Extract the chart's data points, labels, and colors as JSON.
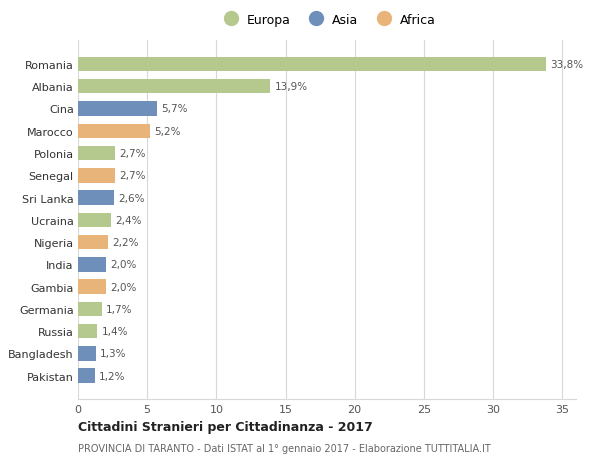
{
  "countries": [
    "Romania",
    "Albania",
    "Cina",
    "Marocco",
    "Polonia",
    "Senegal",
    "Sri Lanka",
    "Ucraina",
    "Nigeria",
    "India",
    "Gambia",
    "Germania",
    "Russia",
    "Bangladesh",
    "Pakistan"
  ],
  "values": [
    33.8,
    13.9,
    5.7,
    5.2,
    2.7,
    2.7,
    2.6,
    2.4,
    2.2,
    2.0,
    2.0,
    1.7,
    1.4,
    1.3,
    1.2
  ],
  "labels": [
    "33,8%",
    "13,9%",
    "5,7%",
    "5,2%",
    "2,7%",
    "2,7%",
    "2,6%",
    "2,4%",
    "2,2%",
    "2,0%",
    "2,0%",
    "1,7%",
    "1,4%",
    "1,3%",
    "1,2%"
  ],
  "continents": [
    "Europa",
    "Europa",
    "Asia",
    "Africa",
    "Europa",
    "Africa",
    "Asia",
    "Europa",
    "Africa",
    "Asia",
    "Africa",
    "Europa",
    "Europa",
    "Asia",
    "Asia"
  ],
  "colors": {
    "Europa": "#b5c98e",
    "Asia": "#6e8fba",
    "Africa": "#e8b47a"
  },
  "xlim": [
    0,
    36
  ],
  "xticks": [
    0,
    5,
    10,
    15,
    20,
    25,
    30,
    35
  ],
  "title": "Cittadini Stranieri per Cittadinanza - 2017",
  "subtitle": "PROVINCIA DI TARANTO - Dati ISTAT al 1° gennaio 2017 - Elaborazione TUTTITALIA.IT",
  "background_color": "#ffffff",
  "grid_color": "#d8d8d8"
}
